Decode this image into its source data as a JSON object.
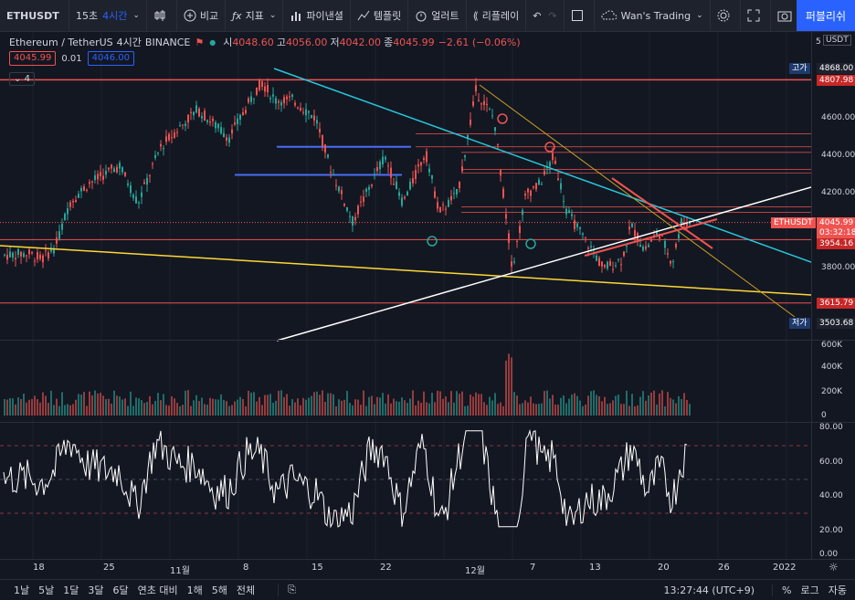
{
  "toolbar": {
    "symbol": "ETHUSDT",
    "seconds": "15초",
    "interval": "4시간",
    "compare": "비교",
    "indicators": "지표",
    "financials": "파이낸셜",
    "templates": "템플릿",
    "alert": "얼러트",
    "replay": "리플레이",
    "layout_name": "Wan's Trading",
    "publish": "퍼블리쉬"
  },
  "legend": {
    "title": "Ethereum / TetherUS",
    "interval": "4시간",
    "exchange": "BINANCE",
    "o_label": "시",
    "o": "4048.60",
    "h_label": "고",
    "h": "4056.00",
    "l_label": "저",
    "l": "4042.00",
    "c_label": "종",
    "c": "4045.99",
    "change": "−2.61 (−0.06%)",
    "bid": "4045.99",
    "spread": "0.01",
    "ask": "4046.00",
    "collapsed_count": "4"
  },
  "price_axis": {
    "currency": "USDT",
    "top_corner": "5",
    "ticks": [
      "4600.00",
      "4400.00",
      "4200.00",
      "3800.00"
    ],
    "high_label": "고가",
    "high_value": "4868.00",
    "level_top": "4807.98",
    "symbol_tag": "ETHUSDT",
    "last_price": "4045.99",
    "countdown": "03:32:18",
    "level_mid": "3954.16",
    "level_low": "3615.79",
    "low_label": "저가",
    "low_value": "3503.68"
  },
  "volume_axis": [
    "600K",
    "400K",
    "200K",
    "0"
  ],
  "rsi_axis": [
    "80.00",
    "60.00",
    "40.00",
    "20.00",
    "0.00"
  ],
  "time_axis": [
    "18",
    "25",
    "11월",
    "8",
    "15",
    "22",
    "12월",
    "7",
    "13",
    "20",
    "26",
    "2022"
  ],
  "bottom": {
    "ranges": [
      "1날",
      "5날",
      "1달",
      "3달",
      "6달",
      "연초 대비",
      "1해",
      "5해",
      "전체"
    ],
    "clock": "13:27:44 (UTC+9)",
    "percent": "%",
    "log": "로그",
    "auto": "자동"
  },
  "colors": {
    "up": "#26a69a",
    "down": "#ef5350",
    "accent": "#2962ff",
    "bg": "#131722"
  }
}
